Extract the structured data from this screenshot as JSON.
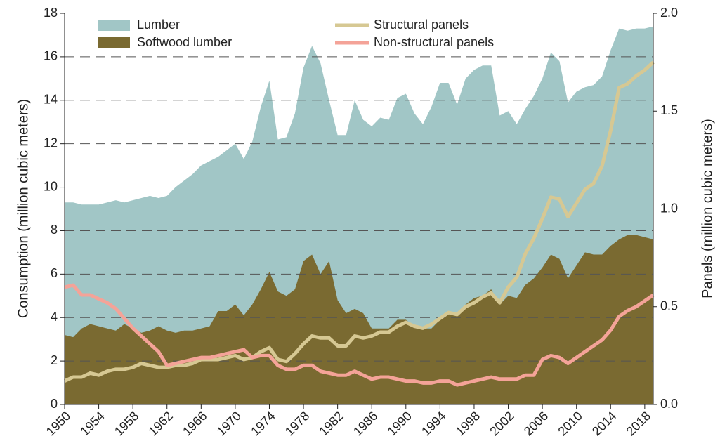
{
  "chart_data": {
    "type": "area-line",
    "x": [
      1950,
      1951,
      1952,
      1953,
      1954,
      1955,
      1956,
      1957,
      1958,
      1959,
      1960,
      1961,
      1962,
      1963,
      1964,
      1965,
      1966,
      1967,
      1968,
      1969,
      1970,
      1971,
      1972,
      1973,
      1974,
      1975,
      1976,
      1977,
      1978,
      1979,
      1980,
      1981,
      1982,
      1983,
      1984,
      1985,
      1986,
      1987,
      1988,
      1989,
      1990,
      1991,
      1992,
      1993,
      1994,
      1995,
      1996,
      1997,
      1998,
      1999,
      2000,
      2001,
      2002,
      2003,
      2004,
      2005,
      2006,
      2007,
      2008,
      2009,
      2010,
      2011,
      2012,
      2013,
      2014,
      2015,
      2016,
      2017,
      2018,
      2019
    ],
    "xlim": [
      1950,
      2019
    ],
    "xticks": [
      1950,
      1954,
      1958,
      1962,
      1966,
      1970,
      1974,
      1978,
      1982,
      1986,
      1990,
      1994,
      1998,
      2002,
      2006,
      2010,
      2014,
      2018
    ],
    "ylabel": "Consumption (million cubic meters)",
    "y2label": "Panels  (million cubic meters)",
    "ylim": [
      0,
      18
    ],
    "yticks": [
      0,
      2,
      4,
      6,
      8,
      10,
      12,
      14,
      16,
      18
    ],
    "y2lim": [
      0,
      2
    ],
    "y2ticks": [
      {
        "value": 0,
        "label": "0.0"
      },
      0.5,
      {
        "value": 1,
        "label": "1.0"
      },
      1.5,
      {
        "value": 2,
        "label": "2.0"
      }
    ],
    "grid": true,
    "series": [
      {
        "name": "Lumber",
        "kind": "area",
        "color": "#a1c6c6",
        "values": [
          9.3,
          9.3,
          9.2,
          9.2,
          9.2,
          9.3,
          9.4,
          9.3,
          9.4,
          9.5,
          9.6,
          9.5,
          9.6,
          10.0,
          10.3,
          10.6,
          11.0,
          11.2,
          11.4,
          11.7,
          12.0,
          11.3,
          12.1,
          13.7,
          14.9,
          12.2,
          12.3,
          13.4,
          15.5,
          16.5,
          15.7,
          14.0,
          12.4,
          12.4,
          14.0,
          13.1,
          12.8,
          13.2,
          13.1,
          14.1,
          14.3,
          13.4,
          12.9,
          13.7,
          14.8,
          14.8,
          13.8,
          15.0,
          15.4,
          15.6,
          15.6,
          13.3,
          13.5,
          12.9,
          13.6,
          14.2,
          15.0,
          16.2,
          15.8,
          13.9,
          14.4,
          14.6,
          14.7,
          15.1,
          16.3,
          17.3,
          17.2,
          17.3,
          17.3,
          17.4
        ]
      },
      {
        "name": "Softwood lumber",
        "kind": "area",
        "color": "#7a6a31",
        "values": [
          3.2,
          3.1,
          3.5,
          3.7,
          3.6,
          3.5,
          3.4,
          3.7,
          3.5,
          3.3,
          3.4,
          3.6,
          3.4,
          3.3,
          3.4,
          3.4,
          3.5,
          3.6,
          4.3,
          4.3,
          4.6,
          4.1,
          4.6,
          5.3,
          6.1,
          5.2,
          5.0,
          5.3,
          6.6,
          6.9,
          6.0,
          6.6,
          4.8,
          4.2,
          4.4,
          4.2,
          3.5,
          3.5,
          3.5,
          3.9,
          3.9,
          3.6,
          3.5,
          3.5,
          3.9,
          4.3,
          4.2,
          4.6,
          4.9,
          5.0,
          5.3,
          4.6,
          5.0,
          4.9,
          5.5,
          5.8,
          6.3,
          6.9,
          6.7,
          5.8,
          6.4,
          7.0,
          6.9,
          6.9,
          7.3,
          7.6,
          7.8,
          7.8,
          7.7,
          7.6
        ]
      },
      {
        "name": "Structural panels",
        "kind": "line",
        "axis": "y2",
        "color": "#d6c893",
        "values": [
          0.12,
          0.14,
          0.14,
          0.16,
          0.15,
          0.17,
          0.18,
          0.18,
          0.19,
          0.21,
          0.2,
          0.19,
          0.19,
          0.2,
          0.2,
          0.21,
          0.23,
          0.23,
          0.23,
          0.24,
          0.25,
          0.23,
          0.24,
          0.27,
          0.29,
          0.23,
          0.22,
          0.26,
          0.31,
          0.35,
          0.34,
          0.34,
          0.3,
          0.3,
          0.35,
          0.34,
          0.35,
          0.37,
          0.37,
          0.4,
          0.42,
          0.4,
          0.39,
          0.41,
          0.44,
          0.47,
          0.46,
          0.5,
          0.52,
          0.55,
          0.57,
          0.52,
          0.6,
          0.65,
          0.77,
          0.85,
          0.95,
          1.06,
          1.05,
          0.96,
          1.03,
          1.1,
          1.13,
          1.22,
          1.4,
          1.62,
          1.64,
          1.68,
          1.71,
          1.75
        ]
      },
      {
        "name": "Non-structural panels",
        "kind": "line",
        "axis": "y2",
        "color": "#f4a398",
        "values": [
          0.6,
          0.61,
          0.56,
          0.56,
          0.54,
          0.52,
          0.49,
          0.44,
          0.39,
          0.35,
          0.31,
          0.27,
          0.2,
          0.21,
          0.22,
          0.23,
          0.24,
          0.24,
          0.25,
          0.26,
          0.27,
          0.28,
          0.24,
          0.25,
          0.25,
          0.2,
          0.18,
          0.18,
          0.2,
          0.2,
          0.17,
          0.16,
          0.15,
          0.15,
          0.17,
          0.15,
          0.13,
          0.14,
          0.14,
          0.13,
          0.12,
          0.12,
          0.11,
          0.11,
          0.12,
          0.12,
          0.1,
          0.11,
          0.12,
          0.13,
          0.14,
          0.13,
          0.13,
          0.13,
          0.15,
          0.15,
          0.23,
          0.25,
          0.24,
          0.21,
          0.24,
          0.27,
          0.3,
          0.33,
          0.38,
          0.45,
          0.48,
          0.5,
          0.53,
          0.56
        ]
      }
    ]
  }
}
